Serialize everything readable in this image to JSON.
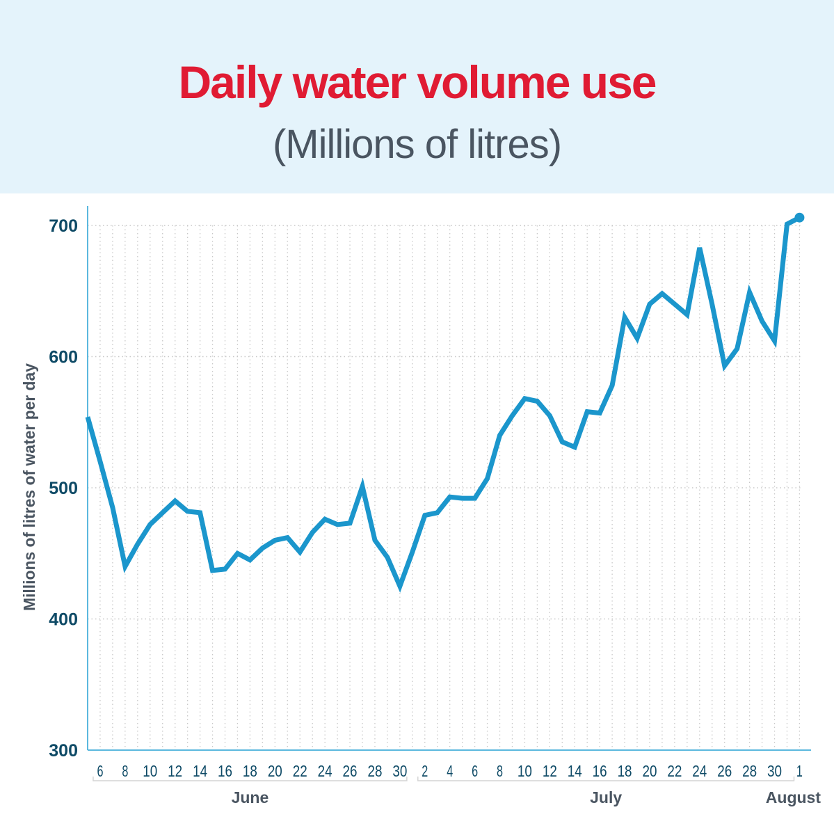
{
  "header": {
    "title": "Daily water volume use",
    "subtitle": "(Millions of litres)"
  },
  "colors": {
    "header_bg": "#e4f3fb",
    "title": "#e01b33",
    "subtitle": "#4a5561",
    "line": "#1b96cc",
    "axis": "#5bb8de",
    "tick_text": "#0e4a66",
    "label_text": "#4a5561",
    "grid": "#c8c8c8"
  },
  "chart_data": {
    "type": "line",
    "title": "Daily water volume use",
    "subtitle": "(Millions of litres)",
    "ylabel": "Millions of litres of water per day",
    "xlabel": "",
    "ylim": [
      300,
      700
    ],
    "yticks": [
      300,
      400,
      500,
      600,
      700
    ],
    "grid": true,
    "x": [
      "Jun 5",
      "Jun 6",
      "Jun 7",
      "Jun 8",
      "Jun 9",
      "Jun 10",
      "Jun 11",
      "Jun 12",
      "Jun 13",
      "Jun 14",
      "Jun 15",
      "Jun 16",
      "Jun 17",
      "Jun 18",
      "Jun 19",
      "Jun 20",
      "Jun 21",
      "Jun 22",
      "Jun 23",
      "Jun 24",
      "Jun 25",
      "Jun 26",
      "Jun 27",
      "Jun 28",
      "Jun 29",
      "Jun 30",
      "Jul 1",
      "Jul 2",
      "Jul 3",
      "Jul 4",
      "Jul 5",
      "Jul 6",
      "Jul 7",
      "Jul 8",
      "Jul 9",
      "Jul 10",
      "Jul 11",
      "Jul 12",
      "Jul 13",
      "Jul 14",
      "Jul 15",
      "Jul 16",
      "Jul 17",
      "Jul 18",
      "Jul 19",
      "Jul 20",
      "Jul 21",
      "Jul 22",
      "Jul 23",
      "Jul 24",
      "Jul 25",
      "Jul 26",
      "Jul 27",
      "Jul 28",
      "Jul 29",
      "Jul 30",
      "Jul 31",
      "Aug 1"
    ],
    "tick_labels": [
      "6",
      "8",
      "10",
      "12",
      "14",
      "16",
      "18",
      "20",
      "22",
      "24",
      "26",
      "28",
      "30",
      "2",
      "4",
      "6",
      "8",
      "10",
      "12",
      "14",
      "16",
      "18",
      "20",
      "22",
      "24",
      "26",
      "28",
      "30",
      "1"
    ],
    "groups": [
      {
        "label": "June",
        "from": 1,
        "to": 25
      },
      {
        "label": "July",
        "from": 27,
        "to": 56
      },
      {
        "label": "August",
        "from": 57,
        "to": 57
      }
    ],
    "series": [
      {
        "values": [
          554,
          520,
          485,
          440,
          457,
          472,
          481,
          490,
          482,
          481,
          437,
          438,
          450,
          445,
          454,
          460,
          462,
          451,
          466,
          476,
          472,
          473,
          501,
          460,
          447,
          425,
          451,
          479,
          481,
          493,
          492,
          492,
          507,
          540,
          555,
          568,
          566,
          555,
          535,
          531,
          558,
          557,
          578,
          630,
          614,
          640,
          648,
          640,
          632,
          683,
          640,
          593,
          606,
          649,
          627,
          612,
          701,
          706
        ]
      }
    ]
  }
}
